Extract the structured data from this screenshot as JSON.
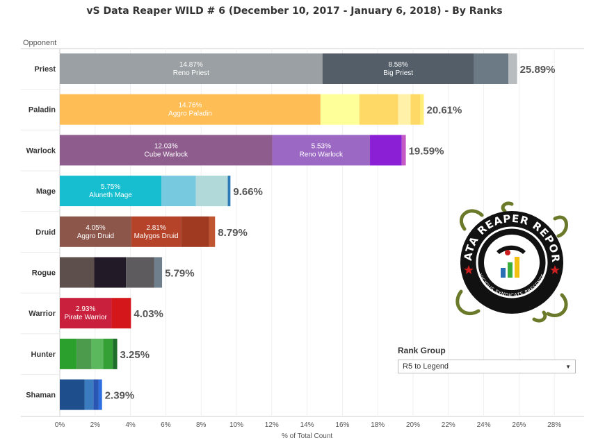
{
  "title": "vS Data Reaper WILD # 6 (December 10, 2017 - January  6, 2018) - By Ranks",
  "rank_group": {
    "title": "Rank Group",
    "selected": "R5 to Legend"
  },
  "chart_data": {
    "type": "bar",
    "orientation": "horizontal",
    "stacked": true,
    "category_header": "Opponent",
    "xlabel": "% of Total Count",
    "xlim": [
      0,
      28
    ],
    "xticks": [
      0,
      2,
      4,
      6,
      8,
      10,
      12,
      14,
      16,
      18,
      20,
      22,
      24,
      26,
      28
    ],
    "tick_labels": [
      "0%",
      "2%",
      "4%",
      "6%",
      "8%",
      "10%",
      "12%",
      "14%",
      "16%",
      "18%",
      "20%",
      "22%",
      "24%",
      "26%",
      "28%"
    ],
    "grid": true,
    "categories": [
      {
        "name": "Priest",
        "total": 25.89,
        "total_label": "25.89%",
        "segments": [
          {
            "value": 14.87,
            "label": "14.87%",
            "name": "Reno Priest",
            "color": "#9aa0a3"
          },
          {
            "value": 8.58,
            "label": "8.58%",
            "name": "Big Priest",
            "color": "#535e68"
          },
          {
            "value": 1.95,
            "color": "#6c7a85"
          },
          {
            "value": 0.49,
            "color": "#b9bcbf"
          }
        ]
      },
      {
        "name": "Paladin",
        "total": 20.61,
        "total_label": "20.61%",
        "segments": [
          {
            "value": 14.76,
            "label": "14.76%",
            "name": "Aggro Paladin",
            "color": "#ffbe55"
          },
          {
            "value": 2.2,
            "color": "#ffff99"
          },
          {
            "value": 2.2,
            "color": "#ffd966"
          },
          {
            "value": 0.7,
            "color": "#fff2a8"
          },
          {
            "value": 0.55,
            "color": "#ffd966"
          },
          {
            "value": 0.2,
            "color": "#ffee77"
          }
        ]
      },
      {
        "name": "Warlock",
        "total": 19.59,
        "total_label": "19.59%",
        "segments": [
          {
            "value": 12.03,
            "label": "12.03%",
            "name": "Cube Warlock",
            "color": "#8e5d8e"
          },
          {
            "value": 5.53,
            "label": "5.53%",
            "name": "Reno Warlock",
            "color": "#9b68c4"
          },
          {
            "value": 1.8,
            "color": "#8a1fd6"
          },
          {
            "value": 0.23,
            "color": "#c45ac4"
          }
        ]
      },
      {
        "name": "Mage",
        "total": 9.66,
        "total_label": "9.66%",
        "segments": [
          {
            "value": 5.75,
            "label": "5.75%",
            "name": "Aluneth Mage",
            "color": "#17becf"
          },
          {
            "value": 1.95,
            "color": "#76c9df"
          },
          {
            "value": 1.81,
            "color": "#b1d9d9"
          },
          {
            "value": 0.15,
            "color": "#2b7bb9"
          }
        ]
      },
      {
        "name": "Druid",
        "total": 8.79,
        "total_label": "8.79%",
        "segments": [
          {
            "value": 4.05,
            "label": "4.05%",
            "name": "Aggro Druid",
            "color": "#8c564b"
          },
          {
            "value": 2.81,
            "label": "2.81%",
            "name": "Malygos Druid",
            "color": "#b5432a"
          },
          {
            "value": 1.6,
            "color": "#a03a21"
          },
          {
            "value": 0.33,
            "color": "#c0562f"
          }
        ]
      },
      {
        "name": "Rogue",
        "total": 5.79,
        "total_label": "5.79%",
        "segments": [
          {
            "value": 1.95,
            "color": "#5c4f4c"
          },
          {
            "value": 1.8,
            "color": "#221a26"
          },
          {
            "value": 1.6,
            "color": "#5e5b5e"
          },
          {
            "value": 0.44,
            "color": "#6f7f8b"
          }
        ]
      },
      {
        "name": "Warrior",
        "total": 4.03,
        "total_label": "4.03%",
        "segments": [
          {
            "value": 2.93,
            "label": "2.93%",
            "name": "Pirate Warrior",
            "color": "#c9203d"
          },
          {
            "value": 1.1,
            "color": "#d3171b"
          }
        ]
      },
      {
        "name": "Hunter",
        "total": 3.25,
        "total_label": "3.25%",
        "segments": [
          {
            "value": 0.95,
            "color": "#2ca02c"
          },
          {
            "value": 0.85,
            "color": "#4c9a4c"
          },
          {
            "value": 0.65,
            "color": "#5cb85c"
          },
          {
            "value": 0.55,
            "color": "#35a035"
          },
          {
            "value": 0.25,
            "color": "#1f6e2a"
          }
        ]
      },
      {
        "name": "Shaman",
        "total": 2.39,
        "total_label": "2.39%",
        "segments": [
          {
            "value": 1.4,
            "color": "#1f4e8c"
          },
          {
            "value": 0.5,
            "color": "#3b7bbf"
          },
          {
            "value": 0.3,
            "color": "#2956b2"
          },
          {
            "value": 0.19,
            "color": "#2f6ee0"
          }
        ]
      }
    ]
  },
  "logo": {
    "text_top": "DATA REAPER REPORT",
    "text_bottom": "VICIOUS SYNDICATE PRESENTS",
    "colors": {
      "ring": "#111111",
      "vine": "#6b7a2a",
      "inner": "#ffffff",
      "star": "#cc1f1f",
      "accent_blue": "#2a6fb5",
      "accent_green": "#3cae3c",
      "accent_yellow": "#f2c012"
    }
  }
}
